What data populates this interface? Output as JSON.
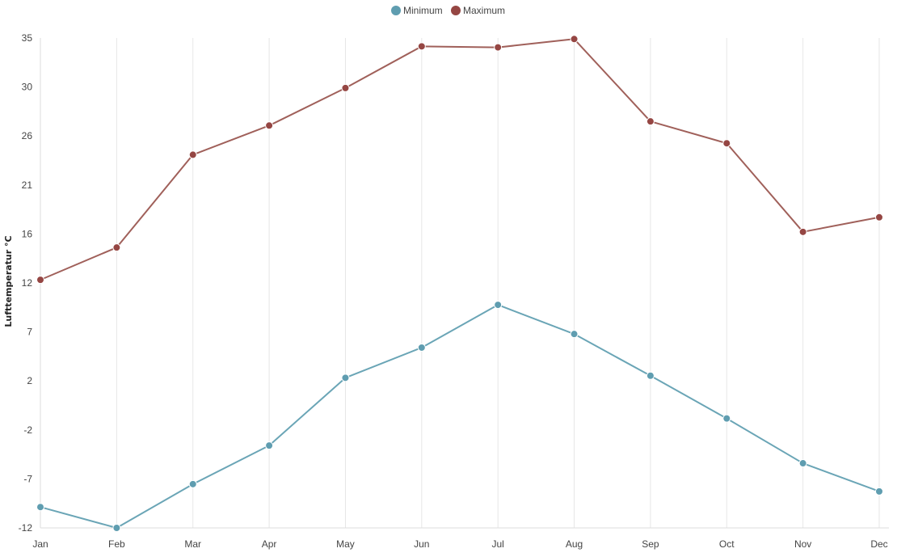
{
  "chart_data": {
    "type": "line",
    "title": "",
    "xlabel": "",
    "ylabel": "Lufttemperatur °C",
    "categories": [
      "Jan",
      "Feb",
      "Mar",
      "Apr",
      "May",
      "Jun",
      "Jul",
      "Aug",
      "Sep",
      "Oct",
      "Nov",
      "Dec"
    ],
    "yticks": [
      35,
      30,
      26,
      21,
      16,
      12,
      7,
      2,
      -2,
      -7,
      -12
    ],
    "ylim": [
      -12,
      35
    ],
    "grid": "vertical",
    "legend_position": "top-center",
    "series": [
      {
        "name": "Minimum",
        "color": "#6aa5b6",
        "marker_color": "#5f9db0",
        "values": [
          -10,
          -12,
          -7.8,
          -4.1,
          2.4,
          5.3,
          9.4,
          6.6,
          2.6,
          -1.5,
          -5.8,
          -8.5
        ]
      },
      {
        "name": "Maximum",
        "color": "#a0605a",
        "marker_color": "#954643",
        "values": [
          11.8,
          14.9,
          23.8,
          26.6,
          30.2,
          34.2,
          34.1,
          34.9,
          27.0,
          24.9,
          16.4,
          17.8
        ]
      }
    ]
  }
}
